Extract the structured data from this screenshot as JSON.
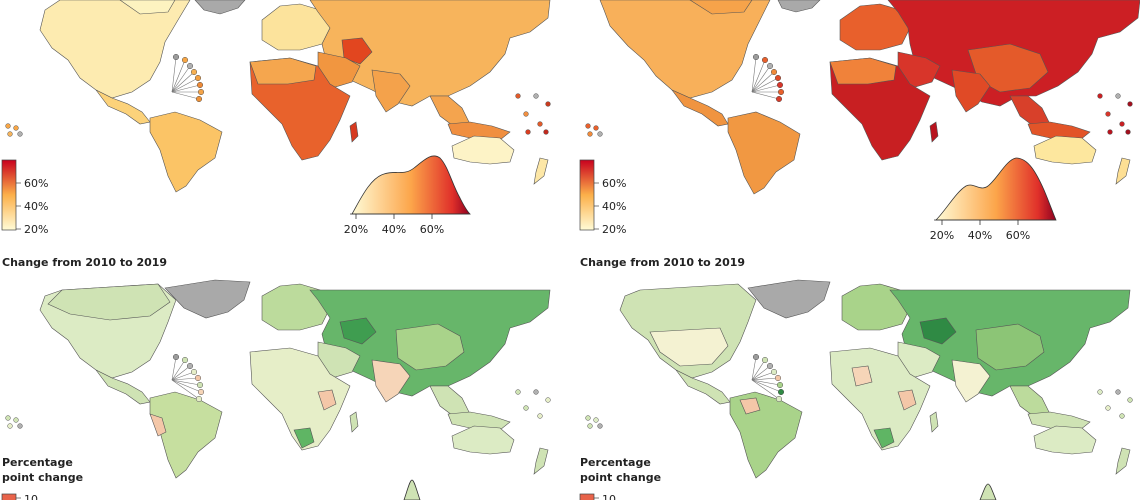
{
  "panels": [
    {
      "id": "top-left",
      "legend_ticks": [
        "60%",
        "40%",
        "20%"
      ],
      "density_ticks": [
        "20%",
        "40%",
        "60%"
      ],
      "colors": {
        "low": "#fdf6c7",
        "mid": "#f7a646",
        "high": "#d7301f"
      }
    },
    {
      "id": "top-right",
      "legend_ticks": [
        "60%",
        "40%",
        "20%"
      ],
      "density_ticks": [
        "20%",
        "40%",
        "60%"
      ],
      "colors": {
        "low": "#fdf6c7",
        "mid": "#f08a3a",
        "high": "#b8001f"
      }
    },
    {
      "id": "bottom-left",
      "heading": "Change from 2010 to 2019",
      "legend_title_line1": "Percentage",
      "legend_title_line2": "point change",
      "legend_partial": "10",
      "colors": {
        "land": "#cfe3b4",
        "strong": "#5fb564",
        "decrease": "#f4c7a8"
      }
    },
    {
      "id": "bottom-right",
      "heading": "Change from 2010 to 2019",
      "legend_title_line1": "Percentage",
      "legend_title_line2": "point change",
      "legend_partial": "10",
      "colors": {
        "land": "#cfe3b4",
        "strong": "#5fb564",
        "decrease": "#f4c7a8"
      }
    }
  ],
  "greenland_color": "#a9a9a9"
}
